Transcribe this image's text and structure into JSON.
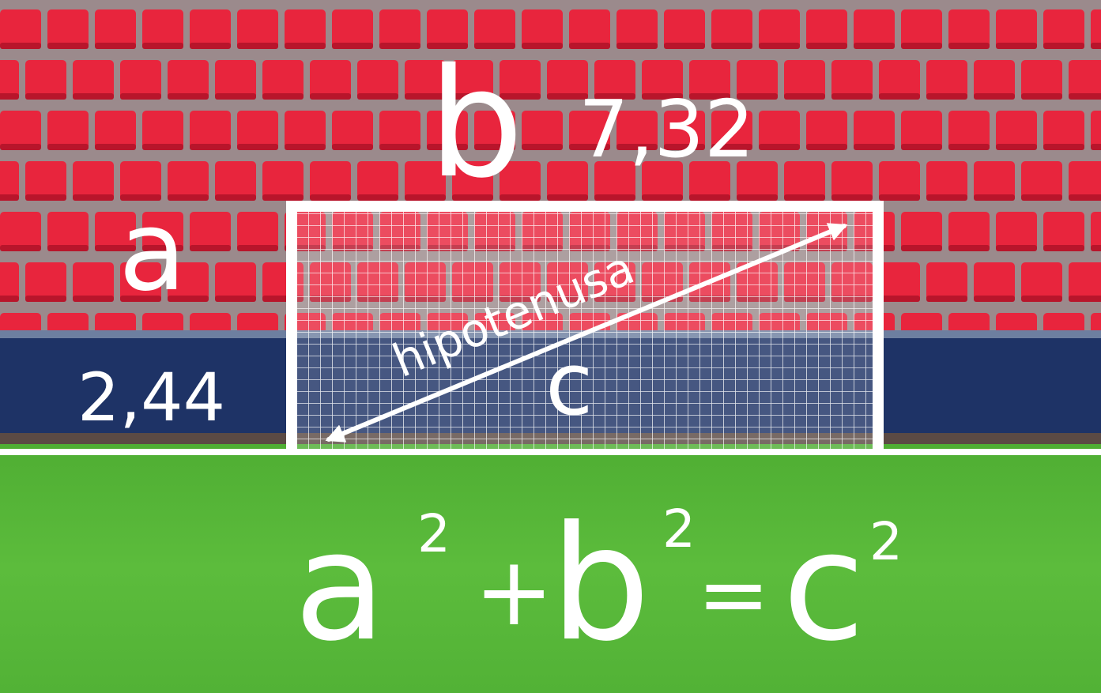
{
  "labels": {
    "leg_a": "a",
    "leg_b": "b",
    "length_b": "7,32",
    "length_a": "2,44",
    "hypotenuse_word": "hipotenusa",
    "hypotenuse_letter": "c"
  },
  "formula": {
    "a": "a",
    "b": "b",
    "c": "c",
    "exp_a": "2",
    "exp_b": "2",
    "exp_c": "2",
    "plus": "+",
    "equals": "="
  },
  "colors": {
    "seat": "#e8253d",
    "seat_shadow": "#b8152b",
    "stand_gap": "#9a8c8e",
    "ad_board": "#1e3366",
    "grass": "#58b83a",
    "line": "#ffffff",
    "ink": "#ffffff"
  }
}
